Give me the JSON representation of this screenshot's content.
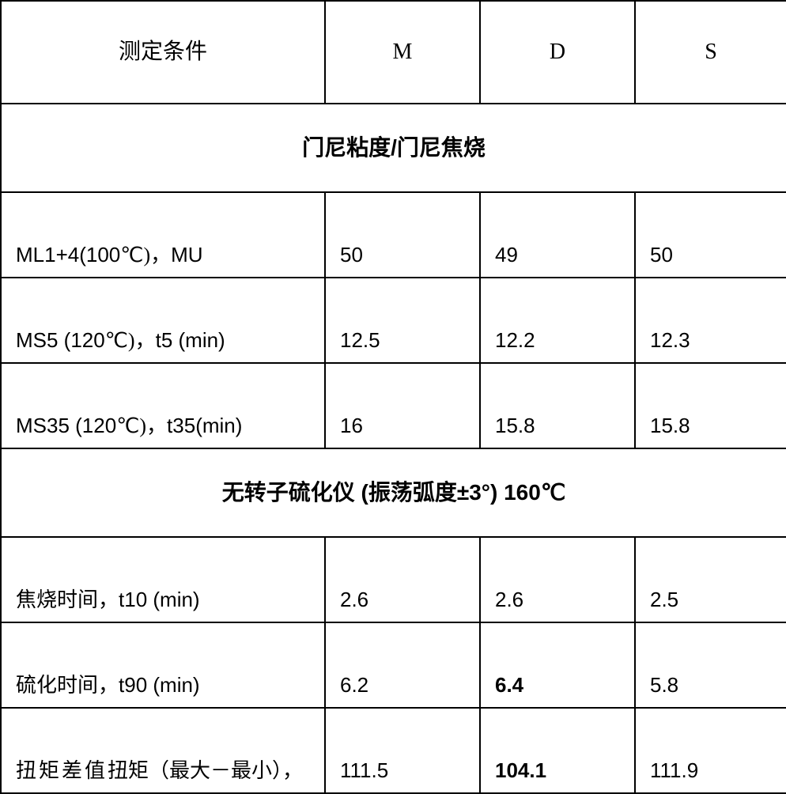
{
  "headers": {
    "label": "测定条件",
    "m": "M",
    "d": "D",
    "s": "S"
  },
  "section1": {
    "title": "门尼粘度/门尼焦烧"
  },
  "section2": {
    "title_cn1": "无转子硫化仪",
    "title_cn2": "(振荡弧度",
    "title_arial": "±3°) 160℃"
  },
  "rows": {
    "ml": {
      "label_a": "ML1+4(100",
      "label_cn": "℃)，",
      "label_b": "MU",
      "m": "50",
      "d": "49",
      "s": "50"
    },
    "ms5": {
      "label_a": "MS5 (120",
      "label_cn": "℃)，",
      "label_b": "t5 (min)",
      "m": "12.5",
      "d": "12.2",
      "s": "12.3"
    },
    "ms35": {
      "label_a": "MS35 (120",
      "label_cn": "℃)，",
      "label_b": "t35(min)",
      "m": "16",
      "d": "15.8",
      "s": "15.8"
    },
    "t10": {
      "label_cn": "焦烧时间，",
      "label_b": "t10 (min)",
      "m": "2.6",
      "d": "2.6",
      "s": "2.5"
    },
    "t90": {
      "label_cn": "硫化时间，",
      "label_b": "t90 (min)",
      "m": "6.2",
      "d": "6.4",
      "s": "5.8"
    },
    "torque": {
      "label_spaced": "扭矩差值",
      "label_tight": "扭矩（最大－最小），",
      "m": "111.5",
      "d": "104.1",
      "s": "111.9"
    }
  },
  "style": {
    "bold_cells": [
      "rows.t90.d",
      "rows.torque.d"
    ]
  }
}
